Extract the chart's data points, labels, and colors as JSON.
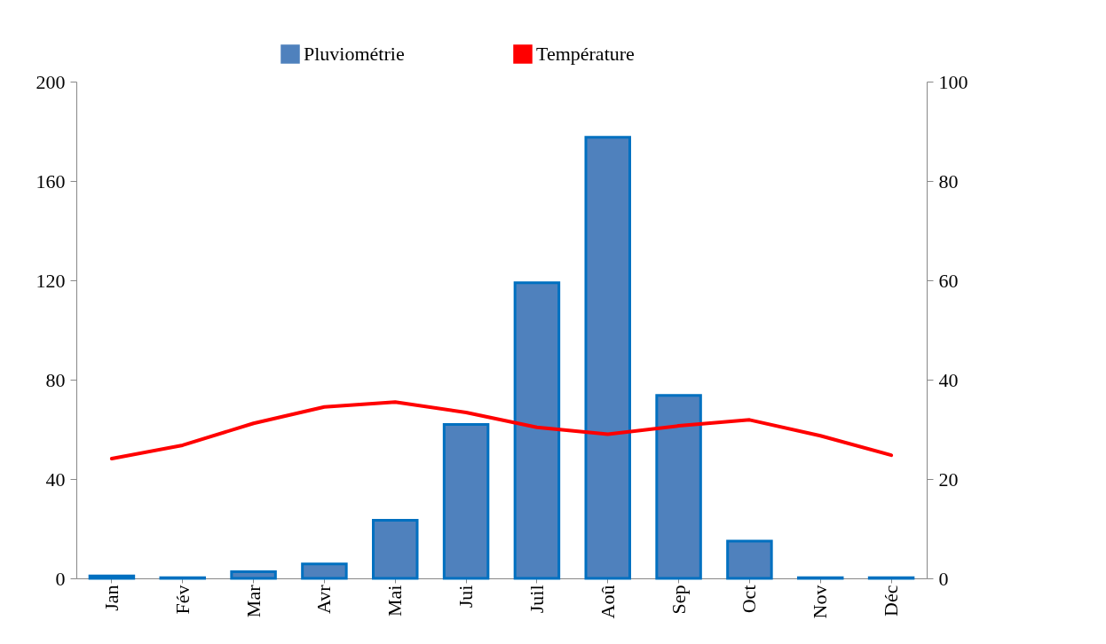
{
  "chart_data": {
    "type": "bar",
    "categories": [
      "Jan",
      "Fév",
      "Mar",
      "Avr",
      "Mai",
      "Jui",
      "Juil",
      "Aoû",
      "Sep",
      "Oct",
      "Nov",
      "Déc"
    ],
    "series": [
      {
        "name": "Pluviométrie",
        "color": "#4f81bd",
        "values": [
          1,
          0.3,
          2.7,
          5.8,
          23.4,
          62,
          119,
          177.6,
          73.7,
          15,
          0.3,
          0.3
        ]
      },
      {
        "name": "Température",
        "type": "line",
        "axis": "y2",
        "color": "#ff0000",
        "values": [
          24.1,
          26.8,
          31.2,
          34.5,
          35.5,
          33.4,
          30.4,
          29.0,
          30.7,
          31.9,
          28.7,
          24.8
        ]
      }
    ],
    "ylim": [
      0,
      200
    ],
    "yticks": [
      0,
      40,
      80,
      120,
      160,
      200
    ],
    "y2lim": [
      0,
      100
    ],
    "y2ticks": [
      0,
      20,
      40,
      60,
      80,
      100
    ],
    "legend": "top",
    "grid": false
  }
}
